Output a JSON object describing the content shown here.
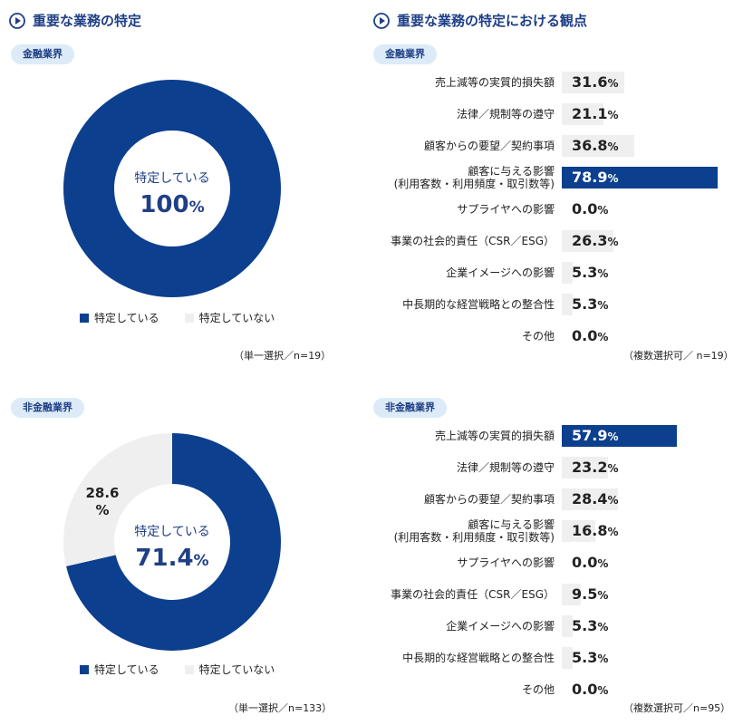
{
  "sections": {
    "left_title": "重要な業務の特定",
    "right_title": "重要な業務の特定における観点"
  },
  "panels": [
    {
      "pill": "金融業界",
      "center_label": "特定している",
      "center_value": "100",
      "center_unit": "%",
      "other_label": "",
      "other_unit": "",
      "legend_a": "特定している",
      "legend_b": "特定していない",
      "note": "（単一選択／n=19）"
    },
    {
      "pill": "非金融業界",
      "center_label": "特定している",
      "center_value": "71.4",
      "center_unit": "%",
      "other_label": "28.6",
      "other_unit": "%",
      "legend_a": "特定している",
      "legend_b": "特定していない",
      "note": "（単一選択／n=133）"
    }
  ],
  "bar_panels": [
    {
      "pill": "金融業界",
      "note": "（複数選択可／ n=19）"
    },
    {
      "pill": "非金融業界",
      "note": "（複数選択可／n=95）"
    }
  ],
  "colors": {
    "primary": "#0d3f8f",
    "secondary": "#efefef",
    "accent_text": "#1f3f86"
  },
  "chart_data": [
    {
      "type": "pie",
      "categories": [
        "特定している",
        "特定していない"
      ],
      "values": [
        100,
        0
      ]
    },
    {
      "type": "pie",
      "categories": [
        "特定している",
        "特定していない"
      ],
      "values": [
        71.4,
        28.6
      ]
    },
    {
      "type": "bar",
      "orientation": "horizontal",
      "categories": [
        "売上減等の実質的損失額",
        "法律／規制等の遵守",
        "顧客からの要望／契約事項",
        "顧客に与える影響\n(利用客数・利用頻度・取引数等)",
        "サプライヤへの影響",
        "事業の社会的責任（CSR／ESG）",
        "企業イメージへの影響",
        "中長期的な経営戦略との整合性",
        "その他"
      ],
      "values": [
        31.6,
        21.1,
        36.8,
        78.9,
        0.0,
        26.3,
        5.3,
        5.3,
        0.0
      ],
      "display": [
        "31.6",
        "21.1",
        "36.8",
        "78.9",
        "0.0",
        "26.3",
        "5.3",
        "5.3",
        "0.0"
      ],
      "unit": "%",
      "highlight": 3,
      "xlim": [
        0,
        100
      ]
    },
    {
      "type": "bar",
      "orientation": "horizontal",
      "categories": [
        "売上減等の実質的損失額",
        "法律／規制等の遵守",
        "顧客からの要望／契約事項",
        "顧客に与える影響\n(利用客数・利用頻度・取引数等)",
        "サプライヤへの影響",
        "事業の社会的責任（CSR／ESG）",
        "企業イメージへの影響",
        "中長期的な経営戦略との整合性",
        "その他"
      ],
      "values": [
        57.9,
        23.2,
        28.4,
        16.8,
        0.0,
        9.5,
        5.3,
        5.3,
        0.0
      ],
      "display": [
        "57.9",
        "23.2",
        "28.4",
        "16.8",
        "0.0",
        "9.5",
        "5.3",
        "5.3",
        "0.0"
      ],
      "unit": "%",
      "highlight": 0,
      "xlim": [
        0,
        100
      ]
    }
  ]
}
